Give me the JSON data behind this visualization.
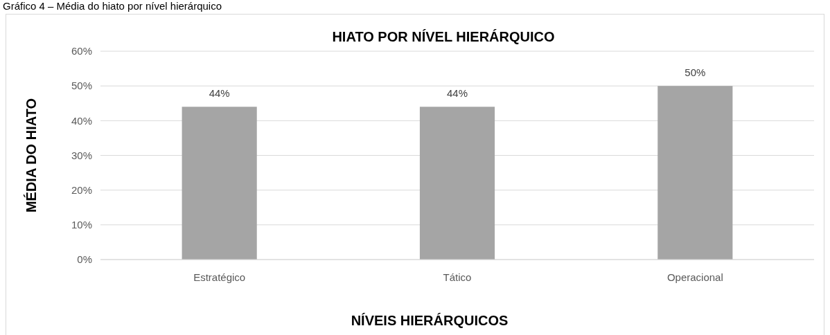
{
  "chart_data": {
    "type": "bar",
    "title": "HIATO POR NÍVEL HIERÁRQUICO",
    "xlabel": "NÍVEIS HIERÁRQUICOS",
    "ylabel": "MÉDIA DO HIATO",
    "annotations": [
      "Gráfico 4 – Média do hiato por nível hierárquico"
    ],
    "categories": [
      "Estratégico",
      "Tático",
      "Operacional"
    ],
    "values": [
      44,
      44,
      50
    ],
    "color": "#a5a5a5",
    "value_labels": [
      "44%",
      "44%",
      "50%"
    ],
    "ylim": [
      0,
      60
    ],
    "yticks": [
      {
        "value": 0,
        "label": "0%"
      },
      {
        "value": 10,
        "label": "10%"
      },
      {
        "value": 20,
        "label": "20%"
      },
      {
        "value": 30,
        "label": "30%"
      },
      {
        "value": 40,
        "label": "40%"
      },
      {
        "value": 50,
        "label": "50%"
      },
      {
        "value": 60,
        "label": "60%"
      }
    ],
    "grid": "y"
  }
}
